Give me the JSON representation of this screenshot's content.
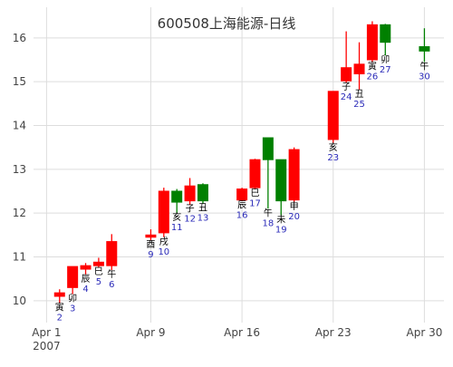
{
  "chart_data": {
    "type": "candlestick",
    "title": "600508上海能源-日线",
    "xlabel": "",
    "ylabel": "",
    "ylim": [
      9.5,
      16.7
    ],
    "y_ticks": [
      10,
      11,
      12,
      13,
      14,
      15,
      16
    ],
    "x_ticks": [
      {
        "day": 1,
        "label": "Apr 1",
        "sublabel": "2007"
      },
      {
        "day": 9,
        "label": "Apr 9",
        "sublabel": ""
      },
      {
        "day": 16,
        "label": "Apr 16",
        "sublabel": ""
      },
      {
        "day": 23,
        "label": "Apr 23",
        "sublabel": ""
      },
      {
        "day": 30,
        "label": "Apr 30",
        "sublabel": ""
      }
    ],
    "xlim_days": [
      0.0,
      31.5
    ],
    "grid": true,
    "up_color": "#ff0000",
    "down_color": "#008000",
    "candles": [
      {
        "day": 2,
        "open": 10.1,
        "close": 10.18,
        "high": 10.26,
        "low": 9.95,
        "branch": "寅",
        "day_label": "2"
      },
      {
        "day": 3,
        "open": 10.3,
        "close": 10.78,
        "high": 10.78,
        "low": 10.15,
        "branch": "卯",
        "day_label": "3"
      },
      {
        "day": 4,
        "open": 10.72,
        "close": 10.8,
        "high": 10.86,
        "low": 10.6,
        "branch": "辰",
        "day_label": "4"
      },
      {
        "day": 5,
        "open": 10.8,
        "close": 10.88,
        "high": 10.98,
        "low": 10.76,
        "branch": "巳",
        "day_label": "5"
      },
      {
        "day": 6,
        "open": 10.8,
        "close": 11.35,
        "high": 11.52,
        "low": 10.7,
        "branch": "午",
        "day_label": "6"
      },
      {
        "day": 9,
        "open": 11.45,
        "close": 11.5,
        "high": 11.63,
        "low": 11.38,
        "branch": "酉",
        "day_label": "9"
      },
      {
        "day": 10,
        "open": 11.55,
        "close": 12.5,
        "high": 12.58,
        "low": 11.45,
        "branch": "戌",
        "day_label": "10"
      },
      {
        "day": 11,
        "open": 12.5,
        "close": 12.25,
        "high": 12.55,
        "low": 12.0,
        "branch": "亥",
        "day_label": "11"
      },
      {
        "day": 12,
        "open": 12.28,
        "close": 12.62,
        "high": 12.8,
        "low": 12.2,
        "branch": "子",
        "day_label": "12"
      },
      {
        "day": 13,
        "open": 12.65,
        "close": 12.28,
        "high": 12.68,
        "low": 12.22,
        "branch": "丑",
        "day_label": "13"
      },
      {
        "day": 16,
        "open": 12.3,
        "close": 12.55,
        "high": 12.58,
        "low": 12.28,
        "branch": "辰",
        "day_label": "16"
      },
      {
        "day": 17,
        "open": 12.58,
        "close": 13.22,
        "high": 13.24,
        "low": 12.55,
        "branch": "巳",
        "day_label": "17"
      },
      {
        "day": 18,
        "open": 13.72,
        "close": 13.22,
        "high": 13.72,
        "low": 12.1,
        "branch": "午",
        "day_label": "18"
      },
      {
        "day": 19,
        "open": 13.22,
        "close": 12.28,
        "high": 13.22,
        "low": 11.95,
        "branch": "未",
        "day_label": "19"
      },
      {
        "day": 20,
        "open": 12.3,
        "close": 13.45,
        "high": 13.5,
        "low": 12.25,
        "branch": "申",
        "day_label": "20"
      },
      {
        "day": 23,
        "open": 13.68,
        "close": 14.78,
        "high": 14.78,
        "low": 13.6,
        "branch": "亥",
        "day_label": "23"
      },
      {
        "day": 24,
        "open": 15.02,
        "close": 15.32,
        "high": 16.15,
        "low": 14.98,
        "branch": "子",
        "day_label": "24"
      },
      {
        "day": 25,
        "open": 15.18,
        "close": 15.4,
        "high": 15.9,
        "low": 14.82,
        "branch": "丑",
        "day_label": "25"
      },
      {
        "day": 26,
        "open": 15.5,
        "close": 16.3,
        "high": 16.38,
        "low": 15.45,
        "branch": "寅",
        "day_label": "26"
      },
      {
        "day": 27,
        "open": 16.3,
        "close": 15.9,
        "high": 16.32,
        "low": 15.6,
        "branch": "卯",
        "day_label": "27"
      },
      {
        "day": 30,
        "open": 15.8,
        "close": 15.7,
        "high": 16.22,
        "low": 15.45,
        "branch": "午",
        "day_label": "30"
      }
    ]
  }
}
